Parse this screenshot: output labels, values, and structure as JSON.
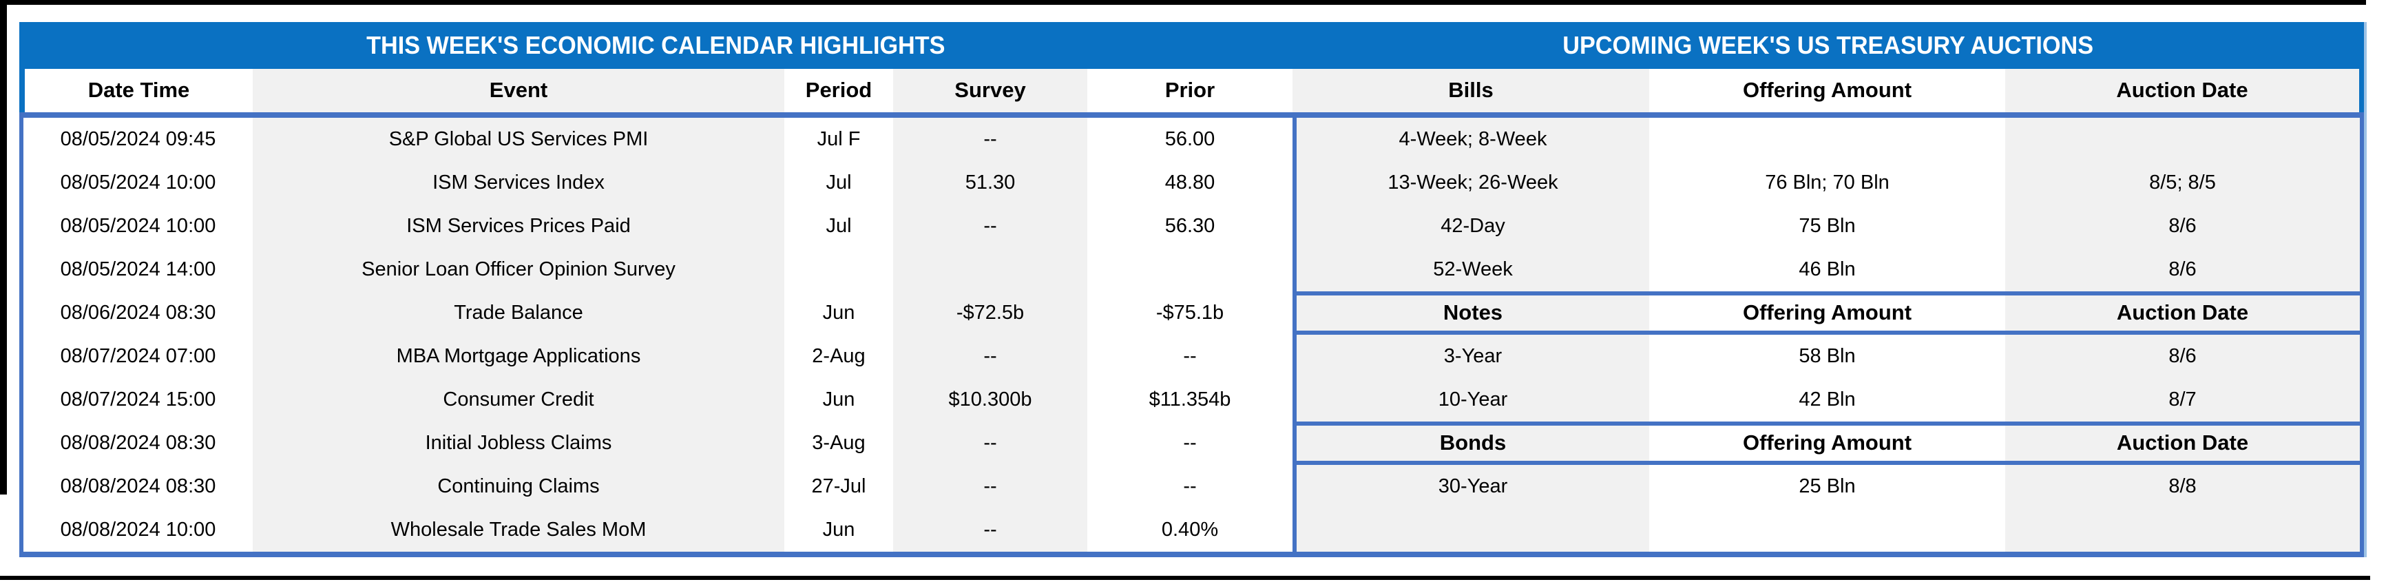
{
  "header_bar": {
    "left_title": "THIS WEEK'S ECONOMIC CALENDAR HIGHLIGHTS",
    "right_title": "UPCOMING WEEK'S US TREASURY AUCTIONS"
  },
  "calendar": {
    "columns": {
      "date_time": "Date Time",
      "event": "Event",
      "period": "Period",
      "survey": "Survey",
      "prior": "Prior"
    },
    "rows": [
      {
        "date_time": "08/05/2024 09:45",
        "event": "S&P Global US Services PMI",
        "period": "Jul F",
        "survey": "--",
        "prior": "56.00"
      },
      {
        "date_time": "08/05/2024 10:00",
        "event": "ISM Services Index",
        "period": "Jul",
        "survey": "51.30",
        "prior": "48.80"
      },
      {
        "date_time": "08/05/2024 10:00",
        "event": "ISM Services Prices Paid",
        "period": "Jul",
        "survey": "--",
        "prior": "56.30"
      },
      {
        "date_time": "08/05/2024 14:00",
        "event": "Senior Loan Officer Opinion Survey",
        "period": "",
        "survey": "",
        "prior": ""
      },
      {
        "date_time": "08/06/2024 08:30",
        "event": "Trade Balance",
        "period": "Jun",
        "survey": "-$72.5b",
        "prior": "-$75.1b"
      },
      {
        "date_time": "08/07/2024 07:00",
        "event": "MBA Mortgage Applications",
        "period": "2-Aug",
        "survey": "--",
        "prior": "--"
      },
      {
        "date_time": "08/07/2024 15:00",
        "event": "Consumer Credit",
        "period": "Jun",
        "survey": "$10.300b",
        "prior": "$11.354b"
      },
      {
        "date_time": "08/08/2024 08:30",
        "event": "Initial Jobless Claims",
        "period": "3-Aug",
        "survey": "--",
        "prior": "--"
      },
      {
        "date_time": "08/08/2024 08:30",
        "event": "Continuing Claims",
        "period": "27-Jul",
        "survey": "--",
        "prior": "--"
      },
      {
        "date_time": "08/08/2024 10:00",
        "event": "Wholesale Trade Sales MoM",
        "period": "Jun",
        "survey": "--",
        "prior": "0.40%"
      }
    ]
  },
  "auctions": {
    "columns": {
      "instrument": "Bills",
      "amount": "Offering Amount",
      "date": "Auction Date"
    },
    "rows": [
      {
        "instrument": "4-Week; 8-Week",
        "amount": "",
        "date": ""
      },
      {
        "instrument": "13-Week; 26-Week",
        "amount": "76 Bln; 70 Bln",
        "date": "8/5; 8/5"
      },
      {
        "instrument": "42-Day",
        "amount": "75 Bln",
        "date": "8/6"
      },
      {
        "instrument": "52-Week",
        "amount": "46 Bln",
        "date": "8/6"
      },
      {
        "instrument": "Notes",
        "amount": "Offering Amount",
        "date": "Auction Date",
        "is_section_header": true
      },
      {
        "instrument": "3-Year",
        "amount": "58 Bln",
        "date": "8/6"
      },
      {
        "instrument": "10-Year",
        "amount": "42 Bln",
        "date": "8/7"
      },
      {
        "instrument": "Bonds",
        "amount": "Offering Amount",
        "date": "Auction Date",
        "is_section_header": true
      },
      {
        "instrument": "30-Year",
        "amount": "25 Bln",
        "date": "8/8"
      },
      {
        "instrument": "",
        "amount": "",
        "date": ""
      }
    ]
  },
  "colors": {
    "header_bar_blue": "#0A71C2",
    "border_blue": "#4472C4",
    "accent_light_blue": "#9DC3E6",
    "stripe_gray": "#F1F1F1",
    "frame_black": "#000000"
  }
}
